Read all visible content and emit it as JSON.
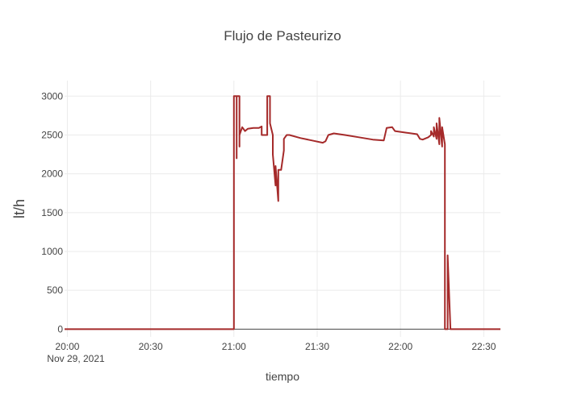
{
  "chart_data": {
    "type": "line",
    "title": "Flujo de Pasteurizo",
    "xlabel": "tiempo",
    "ylabel": "lt/h",
    "xlim": [
      "2021-11-29 19:59",
      "2021-11-29 22:36"
    ],
    "ylim": [
      -100,
      3200
    ],
    "xticks": [
      "2021-11-29 20:00",
      "2021-11-29 20:30",
      "2021-11-29 21:00",
      "2021-11-29 21:30",
      "2021-11-29 22:00",
      "2021-11-29 22:30"
    ],
    "xtick_labels": [
      "20:00",
      "20:30",
      "21:00",
      "21:30",
      "22:00",
      "22:30"
    ],
    "xtick_date_label": "Nov 29, 2021",
    "yticks": [
      0,
      500,
      1000,
      1500,
      2000,
      2500,
      3000
    ],
    "ytick_labels": [
      "0",
      "500",
      "1000",
      "1500",
      "2000",
      "2500",
      "3000"
    ],
    "grid": true,
    "legend": "none",
    "series": [
      {
        "color": "#a52a2a",
        "points": [
          [
            "2021-11-29 19:59",
            0
          ],
          [
            "2021-11-29 21:00",
            0
          ],
          [
            "2021-11-29 21:00",
            3000
          ],
          [
            "2021-11-29 21:01",
            3000
          ],
          [
            "2021-11-29 21:01",
            2200
          ],
          [
            "2021-11-29 21:01",
            3000
          ],
          [
            "2021-11-29 21:02",
            3000
          ],
          [
            "2021-11-29 21:02",
            2350
          ],
          [
            "2021-11-29 21:02",
            2500
          ],
          [
            "2021-11-29 21:03",
            2600
          ],
          [
            "2021-11-29 21:04",
            2550
          ],
          [
            "2021-11-29 21:05",
            2580
          ],
          [
            "2021-11-29 21:07",
            2590
          ],
          [
            "2021-11-29 21:09",
            2590
          ],
          [
            "2021-11-29 21:10",
            2610
          ],
          [
            "2021-11-29 21:10",
            2500
          ],
          [
            "2021-11-29 21:12",
            2500
          ],
          [
            "2021-11-29 21:12",
            3000
          ],
          [
            "2021-11-29 21:13",
            3000
          ],
          [
            "2021-11-29 21:13",
            2650
          ],
          [
            "2021-11-29 21:14",
            2500
          ],
          [
            "2021-11-29 21:14",
            2250
          ],
          [
            "2021-11-29 21:15",
            1850
          ],
          [
            "2021-11-29 21:15",
            2100
          ],
          [
            "2021-11-29 21:16",
            1650
          ],
          [
            "2021-11-29 21:16",
            2050
          ],
          [
            "2021-11-29 21:17",
            2050
          ],
          [
            "2021-11-29 21:18",
            2300
          ],
          [
            "2021-11-29 21:18",
            2450
          ],
          [
            "2021-11-29 21:19",
            2500
          ],
          [
            "2021-11-29 21:20",
            2500
          ],
          [
            "2021-11-29 21:24",
            2460
          ],
          [
            "2021-11-29 21:28",
            2430
          ],
          [
            "2021-11-29 21:32",
            2400
          ],
          [
            "2021-11-29 21:33",
            2420
          ],
          [
            "2021-11-29 21:34",
            2500
          ],
          [
            "2021-11-29 21:36",
            2520
          ],
          [
            "2021-11-29 21:40",
            2500
          ],
          [
            "2021-11-29 21:45",
            2470
          ],
          [
            "2021-11-29 21:50",
            2440
          ],
          [
            "2021-11-29 21:54",
            2430
          ],
          [
            "2021-11-29 21:55",
            2590
          ],
          [
            "2021-11-29 21:57",
            2600
          ],
          [
            "2021-11-29 21:58",
            2550
          ],
          [
            "2021-11-29 22:02",
            2530
          ],
          [
            "2021-11-29 22:06",
            2510
          ],
          [
            "2021-11-29 22:07",
            2450
          ],
          [
            "2021-11-29 22:08",
            2440
          ],
          [
            "2021-11-29 22:10",
            2470
          ],
          [
            "2021-11-29 22:11",
            2500
          ],
          [
            "2021-11-29 22:11",
            2550
          ],
          [
            "2021-11-29 22:12",
            2480
          ],
          [
            "2021-11-29 22:12",
            2600
          ],
          [
            "2021-11-29 22:13",
            2450
          ],
          [
            "2021-11-29 22:13",
            2650
          ],
          [
            "2021-11-29 22:14",
            2380
          ],
          [
            "2021-11-29 22:14",
            2720
          ],
          [
            "2021-11-29 22:15",
            2350
          ],
          [
            "2021-11-29 22:15",
            2600
          ],
          [
            "2021-11-29 22:16",
            2380
          ],
          [
            "2021-11-29 22:16",
            0
          ],
          [
            "2021-11-29 22:17",
            0
          ],
          [
            "2021-11-29 22:17",
            950
          ],
          [
            "2021-11-29 22:18",
            0
          ],
          [
            "2021-11-29 22:36",
            0
          ]
        ]
      }
    ]
  }
}
